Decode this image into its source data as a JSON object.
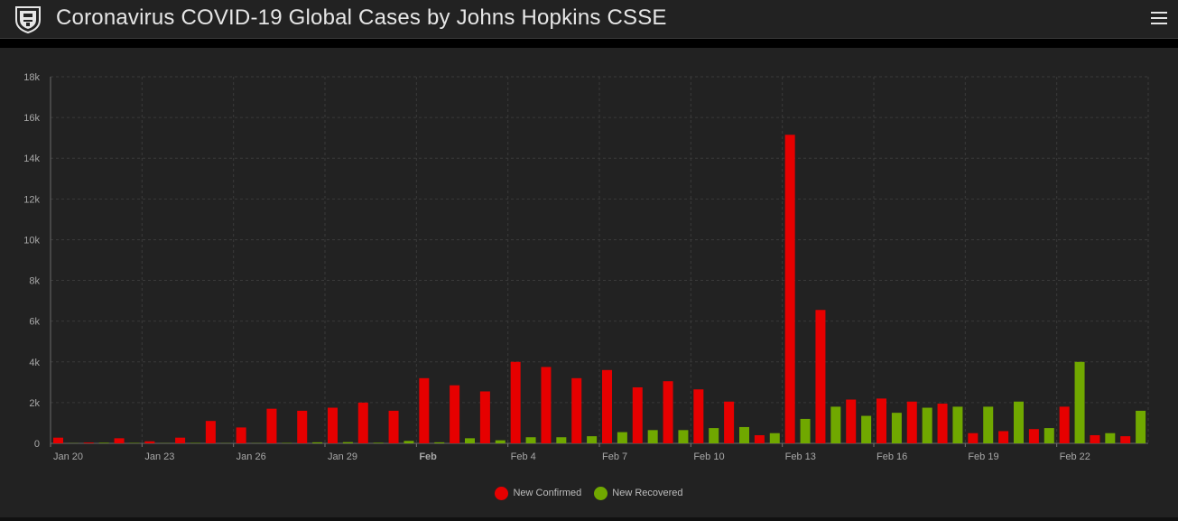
{
  "header": {
    "title": "Coronavirus COVID-19 Global Cases by Johns Hopkins CSSE",
    "logo_icon": "university-shield-icon",
    "menu_icon": "hamburger-menu-icon"
  },
  "colors": {
    "confirmed": "#e60000",
    "recovered": "#70a800",
    "background": "#222222",
    "grid": "#3a3a3a"
  },
  "chart_data": {
    "type": "bar",
    "title": "",
    "xlabel": "",
    "ylabel": "",
    "ylim": [
      0,
      18000
    ],
    "yticks": [
      0,
      2000,
      4000,
      6000,
      8000,
      10000,
      12000,
      14000,
      16000,
      18000
    ],
    "ytick_labels": [
      "0",
      "2k",
      "4k",
      "6k",
      "8k",
      "10k",
      "12k",
      "14k",
      "16k",
      "18k"
    ],
    "xtick_labels": [
      {
        "label": "Jan 20",
        "index": 0,
        "bold": false
      },
      {
        "label": "Jan 23",
        "index": 3,
        "bold": false
      },
      {
        "label": "Jan 26",
        "index": 6,
        "bold": false
      },
      {
        "label": "Jan 29",
        "index": 9,
        "bold": false
      },
      {
        "label": "Feb",
        "index": 12,
        "bold": true
      },
      {
        "label": "Feb 4",
        "index": 15,
        "bold": false
      },
      {
        "label": "Feb 7",
        "index": 18,
        "bold": false
      },
      {
        "label": "Feb 10",
        "index": 21,
        "bold": false
      },
      {
        "label": "Feb 13",
        "index": 24,
        "bold": false
      },
      {
        "label": "Feb 16",
        "index": 27,
        "bold": false
      },
      {
        "label": "Feb 19",
        "index": 30,
        "bold": false
      },
      {
        "label": "Feb 22",
        "index": 33,
        "bold": false
      }
    ],
    "categories": [
      "Jan 20",
      "Jan 21",
      "Jan 22",
      "Jan 23",
      "Jan 24",
      "Jan 25",
      "Jan 26",
      "Jan 27",
      "Jan 28",
      "Jan 29",
      "Jan 30",
      "Jan 31",
      "Feb 1",
      "Feb 2",
      "Feb 3",
      "Feb 4",
      "Feb 5",
      "Feb 6",
      "Feb 7",
      "Feb 8",
      "Feb 9",
      "Feb 10",
      "Feb 11",
      "Feb 12",
      "Feb 13",
      "Feb 14",
      "Feb 15",
      "Feb 16",
      "Feb 17",
      "Feb 18",
      "Feb 19",
      "Feb 20",
      "Feb 21",
      "Feb 22",
      "Feb 23",
      "Feb 24"
    ],
    "series": [
      {
        "name": "New Confirmed",
        "values": [
          280,
          40,
          250,
          100,
          280,
          1100,
          780,
          1700,
          1600,
          1750,
          2000,
          1600,
          3200,
          2850,
          2550,
          4000,
          3750,
          3200,
          3600,
          2750,
          3050,
          2650,
          2050,
          400,
          15150,
          6550,
          2150,
          2200,
          2050,
          1950,
          500,
          600,
          700,
          1800,
          400,
          350
        ]
      },
      {
        "name": "New Recovered",
        "values": [
          10,
          30,
          20,
          10,
          20,
          10,
          10,
          20,
          50,
          60,
          30,
          120,
          50,
          250,
          150,
          300,
          300,
          350,
          550,
          650,
          650,
          750,
          800,
          500,
          1200,
          1800,
          1350,
          1500,
          1750,
          1800,
          1800,
          2050,
          750,
          4000,
          500,
          1600
        ]
      }
    ],
    "legend": {
      "placement": "bottom-center",
      "markers": "circle"
    },
    "grid": true
  }
}
